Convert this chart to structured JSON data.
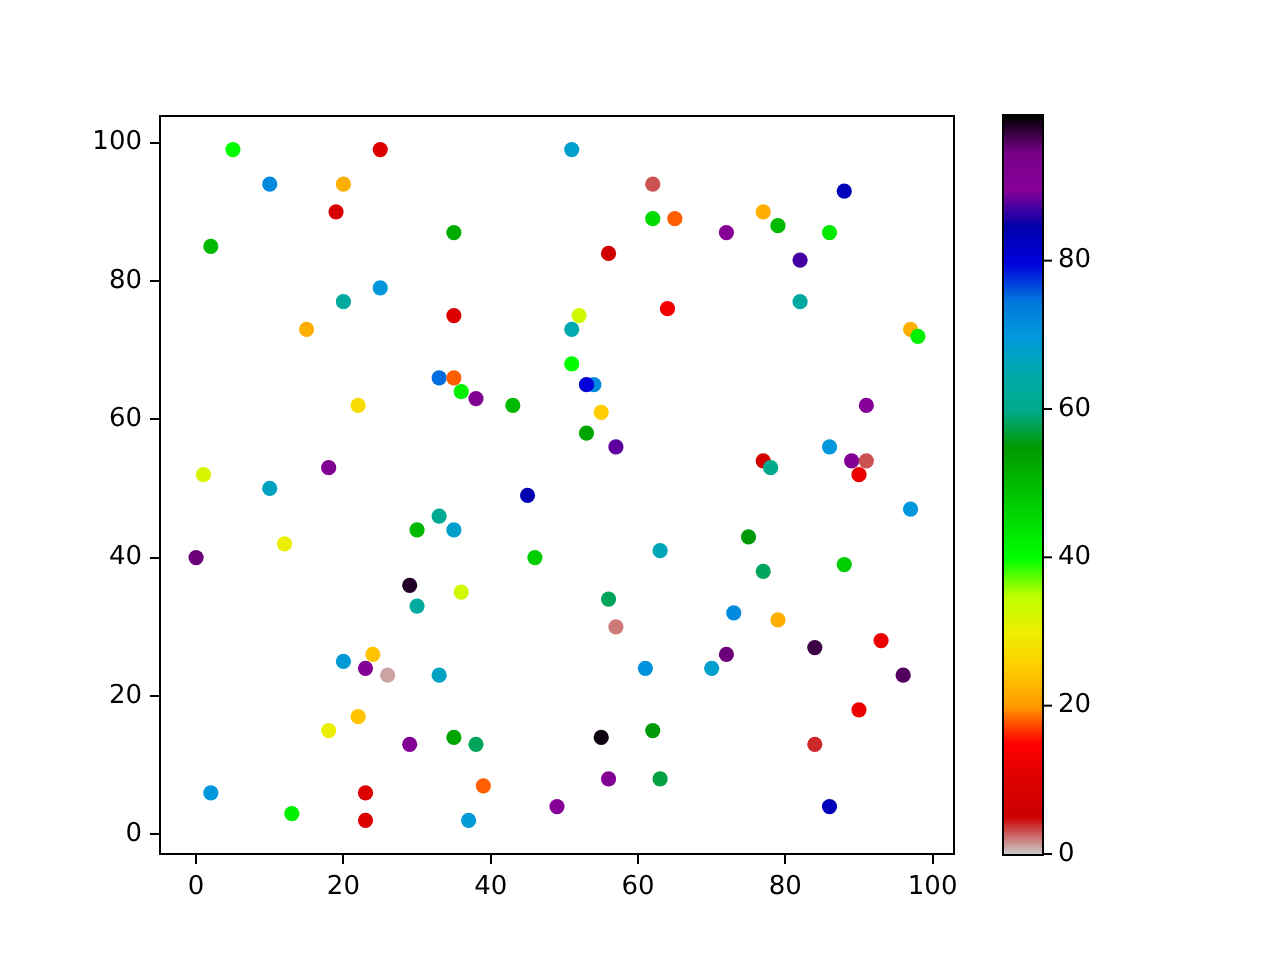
{
  "chart_data": {
    "type": "scatter",
    "x": [
      5,
      10,
      20,
      25,
      19,
      2,
      35,
      20,
      25,
      15,
      35,
      33,
      35,
      36,
      38,
      43,
      22,
      1,
      10,
      18,
      51,
      62,
      62,
      65,
      56,
      72,
      77,
      79,
      86,
      88,
      82,
      64,
      82,
      52,
      51,
      51,
      54,
      53,
      55,
      53,
      57,
      97,
      98,
      91,
      86,
      89,
      91,
      90,
      77,
      78,
      45,
      0,
      12,
      33,
      30,
      35,
      46,
      29,
      36,
      30,
      20,
      24,
      23,
      26,
      33,
      18,
      22,
      29,
      35,
      38,
      39,
      23,
      23,
      37,
      2,
      13,
      97,
      63,
      75,
      77,
      88,
      56,
      57,
      73,
      79,
      84,
      93,
      96,
      72,
      70,
      61,
      55,
      62,
      56,
      63,
      49,
      90,
      84,
      86
    ],
    "values": [
      99,
      94,
      94,
      99,
      90,
      85,
      87,
      77,
      79,
      73,
      75,
      66,
      66,
      64,
      63,
      62,
      62,
      52,
      50,
      53,
      99,
      94,
      89,
      89,
      84,
      87,
      90,
      88,
      87,
      93,
      83,
      76,
      77,
      75,
      73,
      68,
      65,
      65,
      61,
      58,
      56,
      73,
      72,
      62,
      56,
      54,
      54,
      52,
      54,
      53,
      49,
      40,
      42,
      46,
      44,
      44,
      40,
      36,
      35,
      33,
      25,
      26,
      24,
      23,
      23,
      15,
      17,
      13,
      14,
      13,
      7,
      6,
      2,
      2,
      6,
      3,
      47,
      41,
      43,
      38,
      39,
      34,
      30,
      32,
      31,
      27,
      28,
      23,
      26,
      24,
      24,
      14,
      15,
      8,
      8,
      4,
      18,
      13,
      4
    ],
    "cvalues": [
      40,
      72,
      22,
      10,
      8,
      50,
      52,
      63,
      70,
      22,
      10,
      75,
      18,
      42,
      92,
      50,
      27,
      32,
      67,
      92,
      68,
      3,
      45,
      18,
      6,
      90,
      22,
      50,
      43,
      83,
      87,
      13,
      63,
      33,
      65,
      40,
      72,
      80,
      25,
      53,
      88,
      22,
      42,
      90,
      70,
      91,
      3,
      12,
      7,
      60,
      84,
      95,
      30,
      61,
      50,
      68,
      47,
      98,
      33,
      63,
      69,
      24,
      91,
      1,
      67,
      30,
      24,
      91,
      53,
      58,
      18,
      10,
      10,
      69,
      70,
      42,
      70,
      66,
      55,
      58,
      47,
      58,
      2,
      72,
      22,
      97,
      12,
      96,
      95,
      68,
      71,
      99,
      55,
      91,
      57,
      90,
      12,
      4,
      83
    ],
    "xlim": [
      -4.9,
      102.9
    ],
    "ylim": [
      -2.85,
      103.85
    ],
    "xticks": [
      0,
      20,
      40,
      60,
      80,
      100
    ],
    "yticks": [
      0,
      20,
      40,
      60,
      80,
      100
    ],
    "clim": [
      0,
      99.5
    ],
    "cticks": [
      0,
      20,
      40,
      60,
      80
    ],
    "grid": false,
    "legend": false,
    "marker": "circle"
  }
}
